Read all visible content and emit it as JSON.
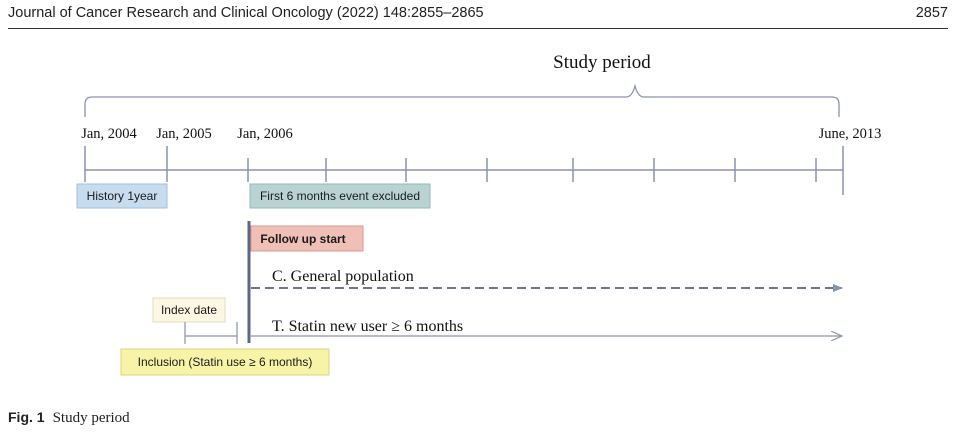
{
  "header": {
    "journal": "Journal of Cancer Research and Clinical Oncology (2022) 148:2855–2865",
    "page_number": "2857"
  },
  "figure": {
    "title": "Study period",
    "timeline_labels": {
      "jan_2004": "Jan, 2004",
      "jan_2005": "Jan, 2005",
      "jan_2006": "Jan, 2006",
      "june_2013": "June, 2013"
    },
    "boxes": {
      "history": "History 1year",
      "excluded": "First 6 months event excluded",
      "follow_up": "Follow up start",
      "index_date": "Index date",
      "inclusion": "Inclusion (Statin use ≥ 6 months)"
    },
    "lines": {
      "general": "C. General population",
      "statin": "T. Statin new user ≥ 6 months"
    },
    "colors": {
      "line": "#8a93ad",
      "history_fill": "#c7dcef",
      "excluded_fill": "#b9d3d3",
      "follow_up_fill": "#f0bfb6",
      "index_fill": "#fdf6e3",
      "inclusion_fill": "#f7f4a8"
    }
  },
  "caption": {
    "label": "Fig. 1",
    "text": "Study period"
  }
}
